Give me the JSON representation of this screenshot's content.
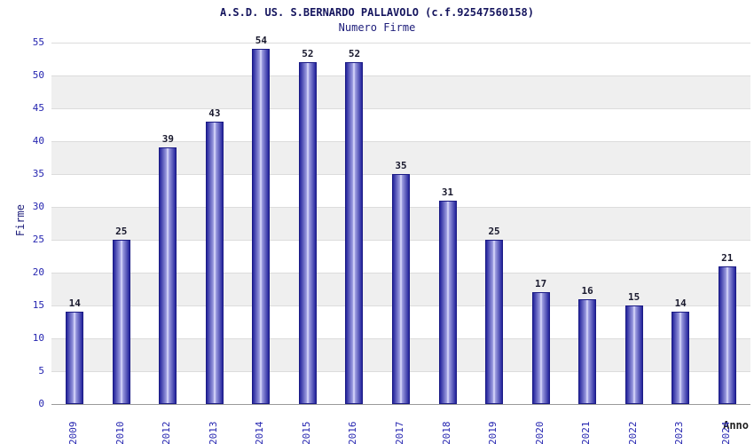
{
  "chart_data": {
    "type": "bar",
    "title": "A.S.D. US. S.BERNARDO PALLAVOLO (c.f.92547560158)",
    "subtitle": "Numero Firme",
    "xlabel": "Anno",
    "ylabel": "Firme",
    "categories": [
      "2009",
      "2010",
      "2012",
      "2013",
      "2014",
      "2015",
      "2016",
      "2017",
      "2018",
      "2019",
      "2020",
      "2021",
      "2022",
      "2023",
      "2024"
    ],
    "values": [
      14,
      25,
      39,
      43,
      54,
      52,
      52,
      35,
      31,
      25,
      17,
      16,
      15,
      14,
      21
    ],
    "ylim": [
      0,
      55
    ],
    "ytick_step": 5,
    "grid": true,
    "legend": "none",
    "colors": {
      "bar_edge": "#1b1b85",
      "bar_center": "#e2e2ff",
      "bar_main": "#23239b",
      "band_gray": "#efefef",
      "tick_text": "#2525b0",
      "title_text": "#15155e",
      "value_text": "#1a1a2e"
    }
  }
}
